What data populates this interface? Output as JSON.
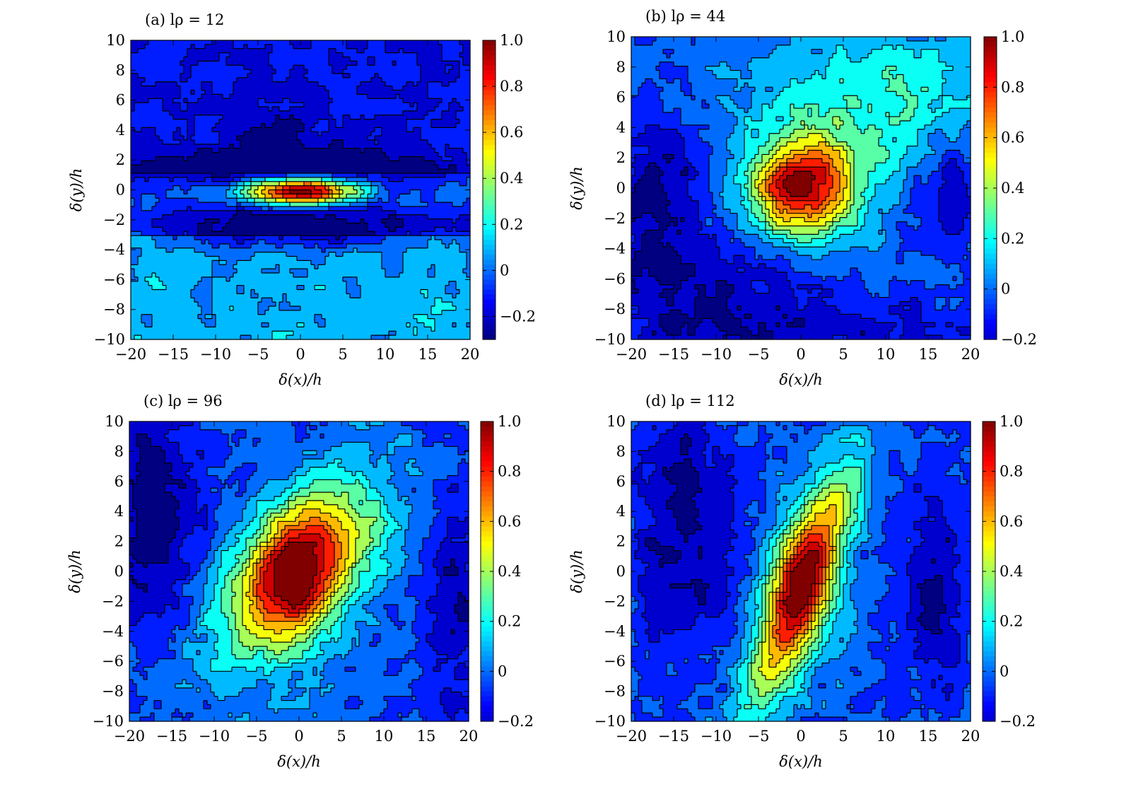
{
  "figure": {
    "panels": [
      {
        "id": "a",
        "title": "(a) lρ = 12",
        "xlabel": "δ(x)/h",
        "ylabel": "δ(y)/h",
        "colorbar": {
          "range": [
            -0.3,
            1.0
          ],
          "ticks": [
            "1.0",
            "0.8",
            "0.6",
            "0.4",
            "0.2",
            "0",
            "−0.2"
          ],
          "tick_values": [
            1.0,
            0.8,
            0.6,
            0.4,
            0.2,
            0,
            -0.2
          ]
        }
      },
      {
        "id": "b",
        "title": "(b) lρ = 44",
        "xlabel": "δ(x)/h",
        "ylabel": "δ(y)/h",
        "colorbar": {
          "range": [
            -0.2,
            1.0
          ],
          "ticks": [
            "1.0",
            "0.8",
            "0.6",
            "0.4",
            "0.2",
            "0",
            "−0.2"
          ],
          "tick_values": [
            1.0,
            0.8,
            0.6,
            0.4,
            0.2,
            0,
            -0.2
          ]
        }
      },
      {
        "id": "c",
        "title": "(c) lρ = 96",
        "xlabel": "δ(x)/h",
        "ylabel": "δ(y)/h",
        "colorbar": {
          "range": [
            -0.2,
            1.0
          ],
          "ticks": [
            "1.0",
            "0.8",
            "0.6",
            "0.4",
            "0.2",
            "0",
            "−0.2"
          ],
          "tick_values": [
            1.0,
            0.8,
            0.6,
            0.4,
            0.2,
            0,
            -0.2
          ]
        }
      },
      {
        "id": "d",
        "title": "(d) lρ = 112",
        "xlabel": "δ(x)/h",
        "ylabel": "δ(y)/h",
        "colorbar": {
          "range": [
            -0.2,
            1.0
          ],
          "ticks": [
            "1.0",
            "0.8",
            "0.6",
            "0.4",
            "0.2",
            "0",
            "−0.2"
          ],
          "tick_values": [
            1.0,
            0.8,
            0.6,
            0.4,
            0.2,
            0,
            -0.2
          ]
        }
      }
    ]
  },
  "chart_data": [
    {
      "type": "heatmap",
      "panel": "a",
      "title": "(a) lρ = 12",
      "xlabel": "δ(x)/h",
      "ylabel": "δ(y)/h",
      "xlim": [
        -20,
        20
      ],
      "ylim": [
        -10,
        10
      ],
      "xticks": [
        -20,
        -15,
        -10,
        -5,
        0,
        5,
        10,
        15,
        20
      ],
      "yticks": [
        -10,
        -8,
        -6,
        -4,
        -2,
        0,
        2,
        4,
        6,
        8,
        10
      ],
      "contour_style": "filled contours with black contour lines",
      "colormap": "jet",
      "peak": {
        "x": 0,
        "y": 0,
        "value": 1.0
      },
      "features": [
        {
          "kind": "gaussian",
          "x": 0,
          "y": -0.1,
          "sx": 4.6,
          "sy": 0.7,
          "amp": 1.15
        },
        {
          "kind": "gaussian",
          "x": 0,
          "y": -2.4,
          "sx": 11,
          "sy": 1.1,
          "amp": -0.35
        },
        {
          "kind": "gaussian",
          "x": -2,
          "y": 1.4,
          "sx": 12,
          "sy": 0.9,
          "amp": -0.3
        },
        {
          "kind": "gaussian",
          "x": -3,
          "y": 3.5,
          "sx": 3,
          "sy": 1.5,
          "amp": -0.15
        }
      ],
      "regions": {
        "y_above_1": -0.12,
        "y_below_-1.5_far": 0.12
      }
    },
    {
      "type": "heatmap",
      "panel": "b",
      "title": "(b) lρ = 44",
      "xlabel": "δ(x)/h",
      "ylabel": "δ(y)/h",
      "xlim": [
        -20,
        20
      ],
      "ylim": [
        -10,
        10
      ],
      "xticks": [
        -20,
        -15,
        -10,
        -5,
        0,
        5,
        10,
        15,
        20
      ],
      "yticks": [
        -10,
        -8,
        -6,
        -4,
        -2,
        0,
        2,
        4,
        6,
        8,
        10
      ],
      "contour_style": "filled contours with black contour lines",
      "colormap": "jet",
      "peak": {
        "x": 0,
        "y": 0,
        "value": 1.0
      },
      "features": [
        {
          "kind": "gaussian",
          "x": 0,
          "y": 0,
          "sx": 4.2,
          "sy": 2.2,
          "amp": 0.95
        },
        {
          "kind": "gaussian",
          "x": 8,
          "y": 5,
          "sx": 9,
          "sy": 4,
          "amp": 0.3
        },
        {
          "kind": "gaussian",
          "x": -17,
          "y": 0,
          "sx": 4,
          "sy": 3,
          "amp": -0.25
        },
        {
          "kind": "gaussian",
          "x": 17,
          "y": 0,
          "sx": 3,
          "sy": 2.5,
          "amp": -0.25
        },
        {
          "kind": "gaussian",
          "x": -12,
          "y": -7,
          "sx": 9,
          "sy": 3,
          "amp": -0.22
        },
        {
          "kind": "gaussian",
          "x": 8,
          "y": -9.5,
          "sx": 14,
          "sy": 1.5,
          "amp": -0.15
        }
      ]
    },
    {
      "type": "heatmap",
      "panel": "c",
      "title": "(c) lρ = 96",
      "xlabel": "δ(x)/h",
      "ylabel": "δ(y)/h",
      "xlim": [
        -20,
        20
      ],
      "ylim": [
        -10,
        10
      ],
      "xticks": [
        -20,
        -15,
        -10,
        -5,
        0,
        5,
        10,
        15,
        20
      ],
      "yticks": [
        -10,
        -8,
        -6,
        -4,
        -2,
        0,
        2,
        4,
        6,
        8,
        10
      ],
      "contour_style": "filled contours with black contour lines",
      "colormap": "jet",
      "peak": {
        "x": -0.5,
        "y": 0,
        "value": 1.0
      },
      "features": [
        {
          "kind": "tilted_band",
          "x": 0,
          "y": 0,
          "slope": 0.42,
          "width": 6,
          "length": 13,
          "amp": 0.9
        },
        {
          "kind": "gaussian",
          "x": -0.5,
          "y": 0,
          "sx": 2.5,
          "sy": 3,
          "amp": 0.35
        },
        {
          "kind": "gaussian",
          "x": -17,
          "y": 4,
          "sx": 4,
          "sy": 5,
          "amp": -0.3
        },
        {
          "kind": "gaussian",
          "x": 18,
          "y": -2,
          "sx": 2.5,
          "sy": 6,
          "amp": -0.2
        }
      ]
    },
    {
      "type": "heatmap",
      "panel": "d",
      "title": "(d) lρ = 112",
      "xlabel": "δ(x)/h",
      "ylabel": "δ(y)/h",
      "xlim": [
        -20,
        20
      ],
      "ylim": [
        -10,
        10
      ],
      "xticks": [
        -20,
        -15,
        -10,
        -5,
        0,
        5,
        10,
        15,
        20
      ],
      "yticks": [
        -10,
        -8,
        -6,
        -4,
        -2,
        0,
        2,
        4,
        6,
        8,
        10
      ],
      "contour_style": "filled contours with black contour lines",
      "colormap": "jet",
      "peak": {
        "x": 0,
        "y": 0,
        "value": 1.0
      },
      "features": [
        {
          "kind": "tilted_band",
          "x": 0,
          "y": -1,
          "slope": 1.3,
          "width": 4,
          "length": 14,
          "amp": 0.75
        },
        {
          "kind": "gaussian",
          "x": 0,
          "y": -1,
          "sx": 2.6,
          "sy": 3.5,
          "amp": 0.4
        },
        {
          "kind": "gaussian",
          "x": -14,
          "y": 3,
          "sx": 4,
          "sy": 6,
          "amp": -0.25
        },
        {
          "kind": "gaussian",
          "x": 16,
          "y": -1,
          "sx": 2.5,
          "sy": 5,
          "amp": -0.25
        }
      ]
    }
  ]
}
